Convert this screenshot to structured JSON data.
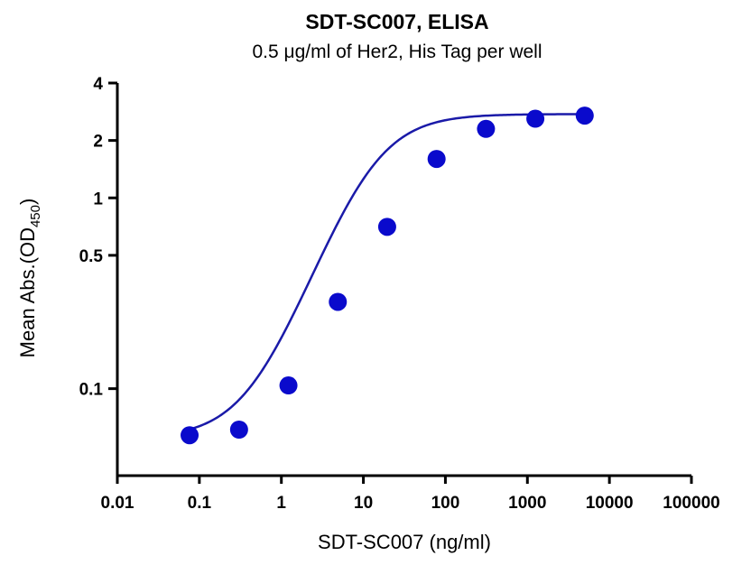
{
  "chart_data": {
    "type": "scatter",
    "title": "SDT-SC007, ELISA",
    "subtitle": "0.5 μg/ml of Her2, His Tag per well",
    "xlabel": "SDT-SC007 (ng/ml)",
    "ylabel_main": "Mean Abs.(OD",
    "ylabel_sub": "450",
    "ylabel_close": ")",
    "x_scale": "log",
    "y_scale": "log",
    "xlim": [
      0.01,
      100000
    ],
    "ylim": [
      0.035,
      4
    ],
    "x_ticks": [
      {
        "value": 0.01,
        "label": "0.01"
      },
      {
        "value": 0.1,
        "label": "0.1"
      },
      {
        "value": 1,
        "label": "1"
      },
      {
        "value": 10,
        "label": "10"
      },
      {
        "value": 100,
        "label": "100"
      },
      {
        "value": 1000,
        "label": "1000"
      },
      {
        "value": 10000,
        "label": "10000"
      },
      {
        "value": 100000,
        "label": "100000"
      }
    ],
    "y_ticks": [
      {
        "value": 0.1,
        "label": "0.1"
      },
      {
        "value": 0.5,
        "label": "0.5"
      },
      {
        "value": 1,
        "label": "1"
      },
      {
        "value": 2,
        "label": "2"
      },
      {
        "value": 4,
        "label": "4"
      }
    ],
    "series": [
      {
        "color": "#0a0acc",
        "x": [
          0.076,
          0.305,
          1.22,
          4.88,
          19.5,
          78.1,
          312.5,
          1250,
          5000
        ],
        "y": [
          0.057,
          0.061,
          0.104,
          0.285,
          0.705,
          1.6,
          2.3,
          2.6,
          2.7
        ]
      }
    ],
    "fit_curve": {
      "type": "4PL",
      "color": "#1a1aa8",
      "bottom": 0.055,
      "top": 2.75,
      "ec50": 12,
      "hill": 1.2,
      "x_range": [
        0.076,
        5000
      ]
    },
    "grid": false,
    "legend": "none"
  }
}
